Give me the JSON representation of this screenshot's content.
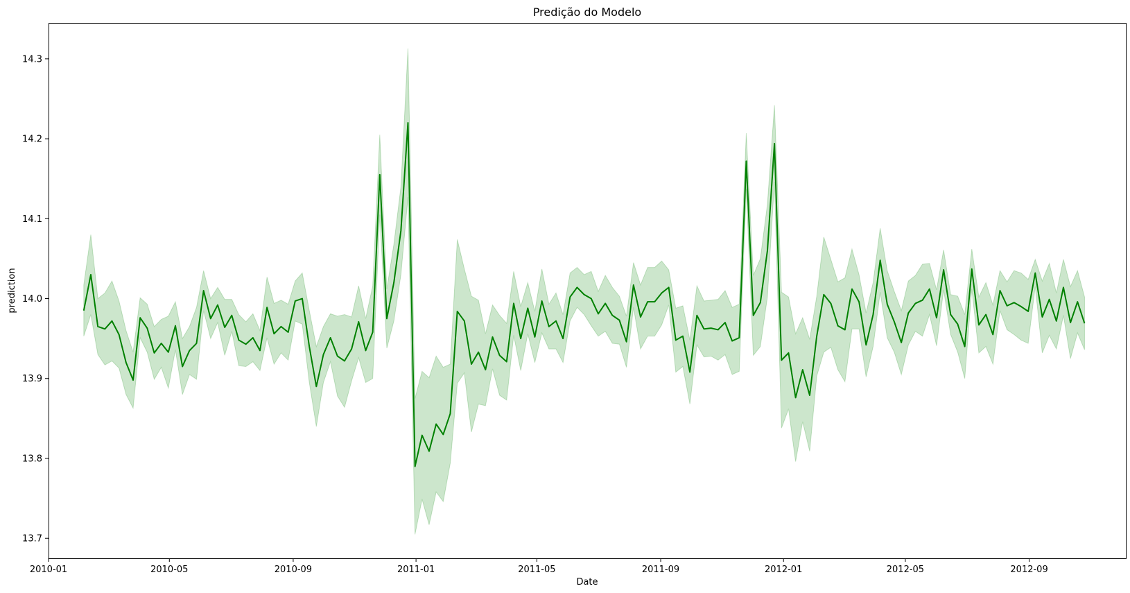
{
  "chart_data": {
    "type": "line",
    "title": "Predição do Modelo",
    "xlabel": "Date",
    "ylabel": "prediction",
    "xlim": [
      "2010-01-01",
      "2012-12-06"
    ],
    "ylim": [
      13.675,
      14.345
    ],
    "x_ticks": [
      {
        "date": "2010-01-01",
        "label": "2010-01"
      },
      {
        "date": "2010-05-01",
        "label": "2010-05"
      },
      {
        "date": "2010-09-01",
        "label": "2010-09"
      },
      {
        "date": "2011-01-01",
        "label": "2011-01"
      },
      {
        "date": "2011-05-01",
        "label": "2011-05"
      },
      {
        "date": "2011-09-01",
        "label": "2011-09"
      },
      {
        "date": "2012-01-01",
        "label": "2012-01"
      },
      {
        "date": "2012-05-01",
        "label": "2012-05"
      },
      {
        "date": "2012-09-01",
        "label": "2012-09"
      }
    ],
    "y_ticks": [
      {
        "value": 13.7,
        "label": "13.7"
      },
      {
        "value": 13.8,
        "label": "13.8"
      },
      {
        "value": 13.9,
        "label": "13.9"
      },
      {
        "value": 14.0,
        "label": "14.0"
      },
      {
        "value": 14.1,
        "label": "14.1"
      },
      {
        "value": 14.2,
        "label": "14.2"
      },
      {
        "value": 14.3,
        "label": "14.3"
      }
    ],
    "grid": false,
    "legend": false,
    "colors": {
      "line": "#008000",
      "band": "#008000"
    },
    "series": [
      {
        "start_date": "2010-02-05",
        "interval_days": 7,
        "values": [
          13.985,
          14.03,
          13.965,
          13.962,
          13.972,
          13.955,
          13.92,
          13.898,
          13.976,
          13.963,
          13.932,
          13.944,
          13.933,
          13.966,
          13.915,
          13.935,
          13.944,
          14.01,
          13.975,
          13.992,
          13.964,
          13.979,
          13.948,
          13.943,
          13.951,
          13.935,
          13.989,
          13.956,
          13.965,
          13.958,
          13.997,
          14.0,
          13.94,
          13.89,
          13.93,
          13.951,
          13.928,
          13.922,
          13.937,
          13.971,
          13.935,
          13.958,
          14.155,
          13.975,
          14.02,
          14.085,
          14.22,
          13.79,
          13.829,
          13.809,
          13.843,
          13.83,
          13.856,
          13.984,
          13.972,
          13.918,
          13.933,
          13.911,
          13.952,
          13.929,
          13.921,
          13.994,
          13.95,
          13.988,
          13.952,
          13.997,
          13.965,
          13.972,
          13.95,
          14.002,
          14.014,
          14.005,
          14.0,
          13.981,
          13.994,
          13.979,
          13.973,
          13.946,
          14.017,
          13.977,
          13.996,
          13.996,
          14.007,
          14.014,
          13.948,
          13.953,
          13.908,
          13.979,
          13.962,
          13.963,
          13.961,
          13.97,
          13.947,
          13.951,
          14.172,
          13.979,
          13.995,
          14.06,
          14.194,
          13.923,
          13.932,
          13.876,
          13.911,
          13.879,
          13.953,
          14.005,
          13.994,
          13.966,
          13.961,
          14.012,
          13.996,
          13.942,
          13.98,
          14.048,
          13.993,
          13.971,
          13.945,
          13.982,
          13.994,
          13.998,
          14.012,
          13.976,
          14.036,
          13.98,
          13.968,
          13.94,
          14.037,
          13.967,
          13.98,
          13.955,
          14.01,
          13.991,
          13.995,
          13.99,
          13.984,
          14.032,
          13.977,
          13.999,
          13.972,
          14.014,
          13.97,
          13.996,
          13.969
        ],
        "ci_half_width": [
          0.032,
          0.05,
          0.035,
          0.045,
          0.05,
          0.042,
          0.04,
          0.035,
          0.025,
          0.03,
          0.033,
          0.03,
          0.045,
          0.03,
          0.035,
          0.03,
          0.045,
          0.025,
          0.025,
          0.022,
          0.035,
          0.02,
          0.032,
          0.028,
          0.03,
          0.025,
          0.038,
          0.038,
          0.033,
          0.035,
          0.025,
          0.032,
          0.045,
          0.05,
          0.035,
          0.03,
          0.05,
          0.058,
          0.04,
          0.045,
          0.04,
          0.058,
          0.05,
          0.037,
          0.048,
          0.055,
          0.093,
          0.085,
          0.08,
          0.092,
          0.085,
          0.084,
          0.062,
          0.09,
          0.065,
          0.085,
          0.065,
          0.045,
          0.04,
          0.05,
          0.048,
          0.04,
          0.04,
          0.032,
          0.032,
          0.04,
          0.028,
          0.035,
          0.03,
          0.03,
          0.025,
          0.025,
          0.034,
          0.028,
          0.035,
          0.035,
          0.03,
          0.032,
          0.028,
          0.04,
          0.043,
          0.043,
          0.04,
          0.022,
          0.04,
          0.038,
          0.04,
          0.037,
          0.035,
          0.035,
          0.038,
          0.04,
          0.042,
          0.042,
          0.035,
          0.05,
          0.055,
          0.058,
          0.048,
          0.085,
          0.07,
          0.08,
          0.065,
          0.07,
          0.05,
          0.072,
          0.055,
          0.055,
          0.065,
          0.05,
          0.034,
          0.04,
          0.04,
          0.04,
          0.042,
          0.038,
          0.04,
          0.04,
          0.035,
          0.045,
          0.032,
          0.035,
          0.025,
          0.025,
          0.035,
          0.04,
          0.025,
          0.035,
          0.04,
          0.037,
          0.025,
          0.03,
          0.04,
          0.042,
          0.04,
          0.017,
          0.045,
          0.045,
          0.035,
          0.035,
          0.045,
          0.039,
          0.033
        ]
      }
    ]
  }
}
